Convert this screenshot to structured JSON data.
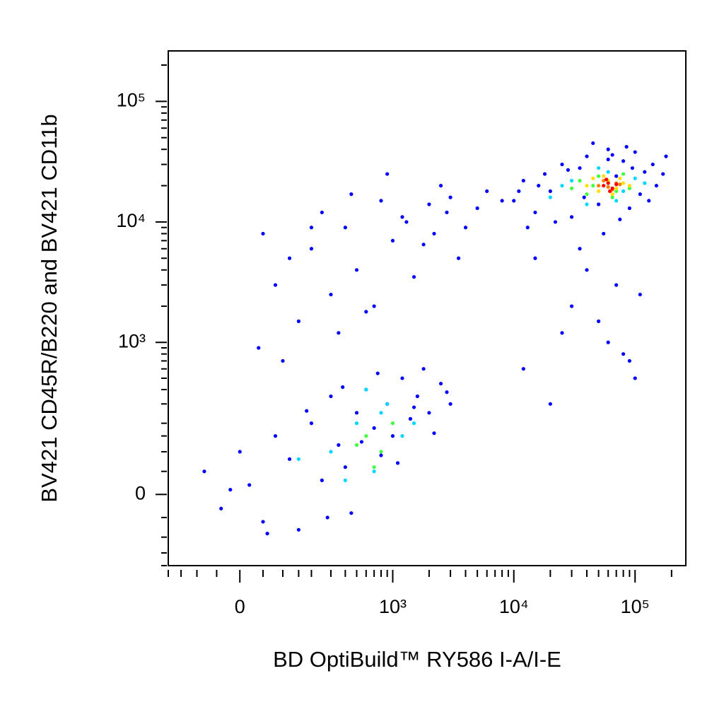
{
  "chart_data": {
    "type": "scatter",
    "x_label": "BD OptiBuild™ RY586 I-A/I-E",
    "y_label": "BV421 CD45R/B220 and BV421 CD11b",
    "xscale": "biexponential",
    "yscale": "biexponential",
    "xlim": [
      -200,
      262144
    ],
    "ylim": [
      -200,
      262144
    ],
    "xticks": [
      0,
      {
        "value": 1000,
        "label": "10³"
      },
      {
        "value": 10000,
        "label": "10⁴"
      },
      {
        "value": 100000,
        "label": "10⁵"
      }
    ],
    "yticks": [
      0,
      {
        "value": 1000,
        "label": "10³"
      },
      {
        "value": 10000,
        "label": "10⁴"
      },
      {
        "value": 100000,
        "label": "10⁵"
      }
    ],
    "xminorticks": [
      -200,
      -150,
      -100,
      -50,
      50,
      100,
      150,
      200,
      300,
      400,
      500,
      600,
      700,
      800,
      900,
      2000,
      3000,
      4000,
      5000,
      6000,
      7000,
      8000,
      9000,
      20000,
      30000,
      40000,
      50000,
      60000,
      70000,
      80000,
      90000,
      200000
    ],
    "yminorticks": [
      -200,
      -150,
      -100,
      -50,
      50,
      100,
      150,
      200,
      300,
      400,
      500,
      600,
      700,
      800,
      900,
      2000,
      3000,
      4000,
      5000,
      6000,
      7000,
      8000,
      9000,
      20000,
      30000,
      40000,
      50000,
      60000,
      70000,
      80000,
      90000,
      200000
    ],
    "series": [
      {
        "color": "#0000ff",
        "x": [
          -80,
          -40,
          0,
          20,
          50,
          80,
          120,
          150,
          200,
          250,
          300,
          350,
          400,
          450,
          500,
          600,
          700,
          800,
          900,
          1000,
          1200,
          1400,
          1600,
          1800,
          2000,
          2500,
          3000,
          -20,
          60,
          180,
          280,
          380,
          550,
          750,
          1100,
          1500,
          2200,
          2800,
          100,
          40,
          50,
          80,
          150,
          200,
          250,
          300,
          400,
          500,
          600,
          800,
          1000,
          1200,
          1500,
          2000,
          2500,
          3000,
          3500,
          4000,
          5000,
          6000,
          350,
          700,
          900,
          1300,
          1800,
          2200,
          120,
          450,
          2800,
          8000,
          10000,
          12000,
          15000,
          18000,
          20000,
          25000,
          30000,
          35000,
          40000,
          50000,
          60000,
          70000,
          80000,
          90000,
          100000,
          120000,
          150000,
          180000,
          13000,
          22000,
          28000,
          45000,
          55000,
          65000,
          85000,
          110000,
          140000,
          16000,
          38000,
          75000,
          95000,
          130000,
          170000,
          11000,
          60000,
          12000,
          20000,
          30000,
          50000,
          80000,
          100000,
          40000,
          60000,
          15000,
          25000,
          70000,
          90000,
          35000,
          110000,
          200
        ],
        "values": [
          50,
          -30,
          100,
          20,
          -60,
          150,
          80,
          -80,
          200,
          30,
          350,
          120,
          60,
          -40,
          250,
          400,
          180,
          90,
          300,
          150,
          500,
          220,
          350,
          600,
          250,
          450,
          300,
          10,
          -90,
          260,
          -50,
          420,
          130,
          550,
          70,
          280,
          160,
          380,
          700,
          900,
          8000,
          3000,
          1500,
          6000,
          12000,
          2500,
          9000,
          4000,
          1800,
          15000,
          7000,
          11000,
          3500,
          14000,
          20000,
          16000,
          5000,
          9000,
          13000,
          18000,
          1200,
          2000,
          25000,
          10000,
          6500,
          8000,
          5000,
          17000,
          12000,
          15000,
          15000,
          22000,
          12000,
          25000,
          18000,
          30000,
          11000,
          28000,
          35000,
          14000,
          40000,
          24000,
          32000,
          13000,
          38000,
          26000,
          20000,
          35000,
          9000,
          10000,
          27000,
          45000,
          8000,
          36000,
          42000,
          17000,
          30000,
          20000,
          16000,
          10500,
          28000,
          15000,
          25000,
          18000,
          33000,
          600,
          300,
          2000,
          1500,
          800,
          500,
          4000,
          1000,
          5000,
          1200,
          3000,
          700,
          6000,
          2500,
          9000
        ]
      },
      {
        "color": "#00d8ff",
        "x": [
          300,
          500,
          700,
          900,
          1200,
          400,
          800,
          150,
          1500,
          600,
          20000,
          30000,
          40000,
          60000,
          80000,
          100000,
          25000,
          50000,
          70000,
          120000
        ],
        "values": [
          100,
          200,
          50,
          300,
          150,
          30,
          250,
          80,
          200,
          400,
          16000,
          22000,
          14000,
          26000,
          18000,
          23000,
          20000,
          28000,
          15000,
          21000
        ]
      },
      {
        "color": "#40ff40",
        "x": [
          600,
          800,
          1000,
          700,
          500,
          30000,
          40000,
          50000,
          60000,
          70000,
          80000,
          45000,
          90000,
          35000,
          65000
        ],
        "values": [
          150,
          100,
          200,
          60,
          120,
          19000,
          17000,
          24000,
          21000,
          18000,
          25000,
          20000,
          19000,
          22000,
          16000
        ]
      },
      {
        "color": "#ffe000",
        "x": [
          40000,
          50000,
          60000,
          70000,
          80000,
          55000,
          45000,
          65000,
          90000,
          75000
        ],
        "values": [
          20000,
          18000,
          22000,
          19000,
          21000,
          24000,
          23000,
          17000,
          20000,
          23000
        ]
      },
      {
        "color": "#ff8000",
        "x": [
          50000,
          60000,
          70000,
          55000,
          65000,
          75000
        ],
        "values": [
          20000,
          19500,
          21000,
          22000,
          18500,
          20500
        ]
      },
      {
        "color": "#ff0000",
        "x": [
          55000,
          60000,
          65000,
          70000,
          62000,
          58000
        ],
        "values": [
          20000,
          21000,
          19000,
          20500,
          18000,
          22500
        ]
      }
    ]
  }
}
